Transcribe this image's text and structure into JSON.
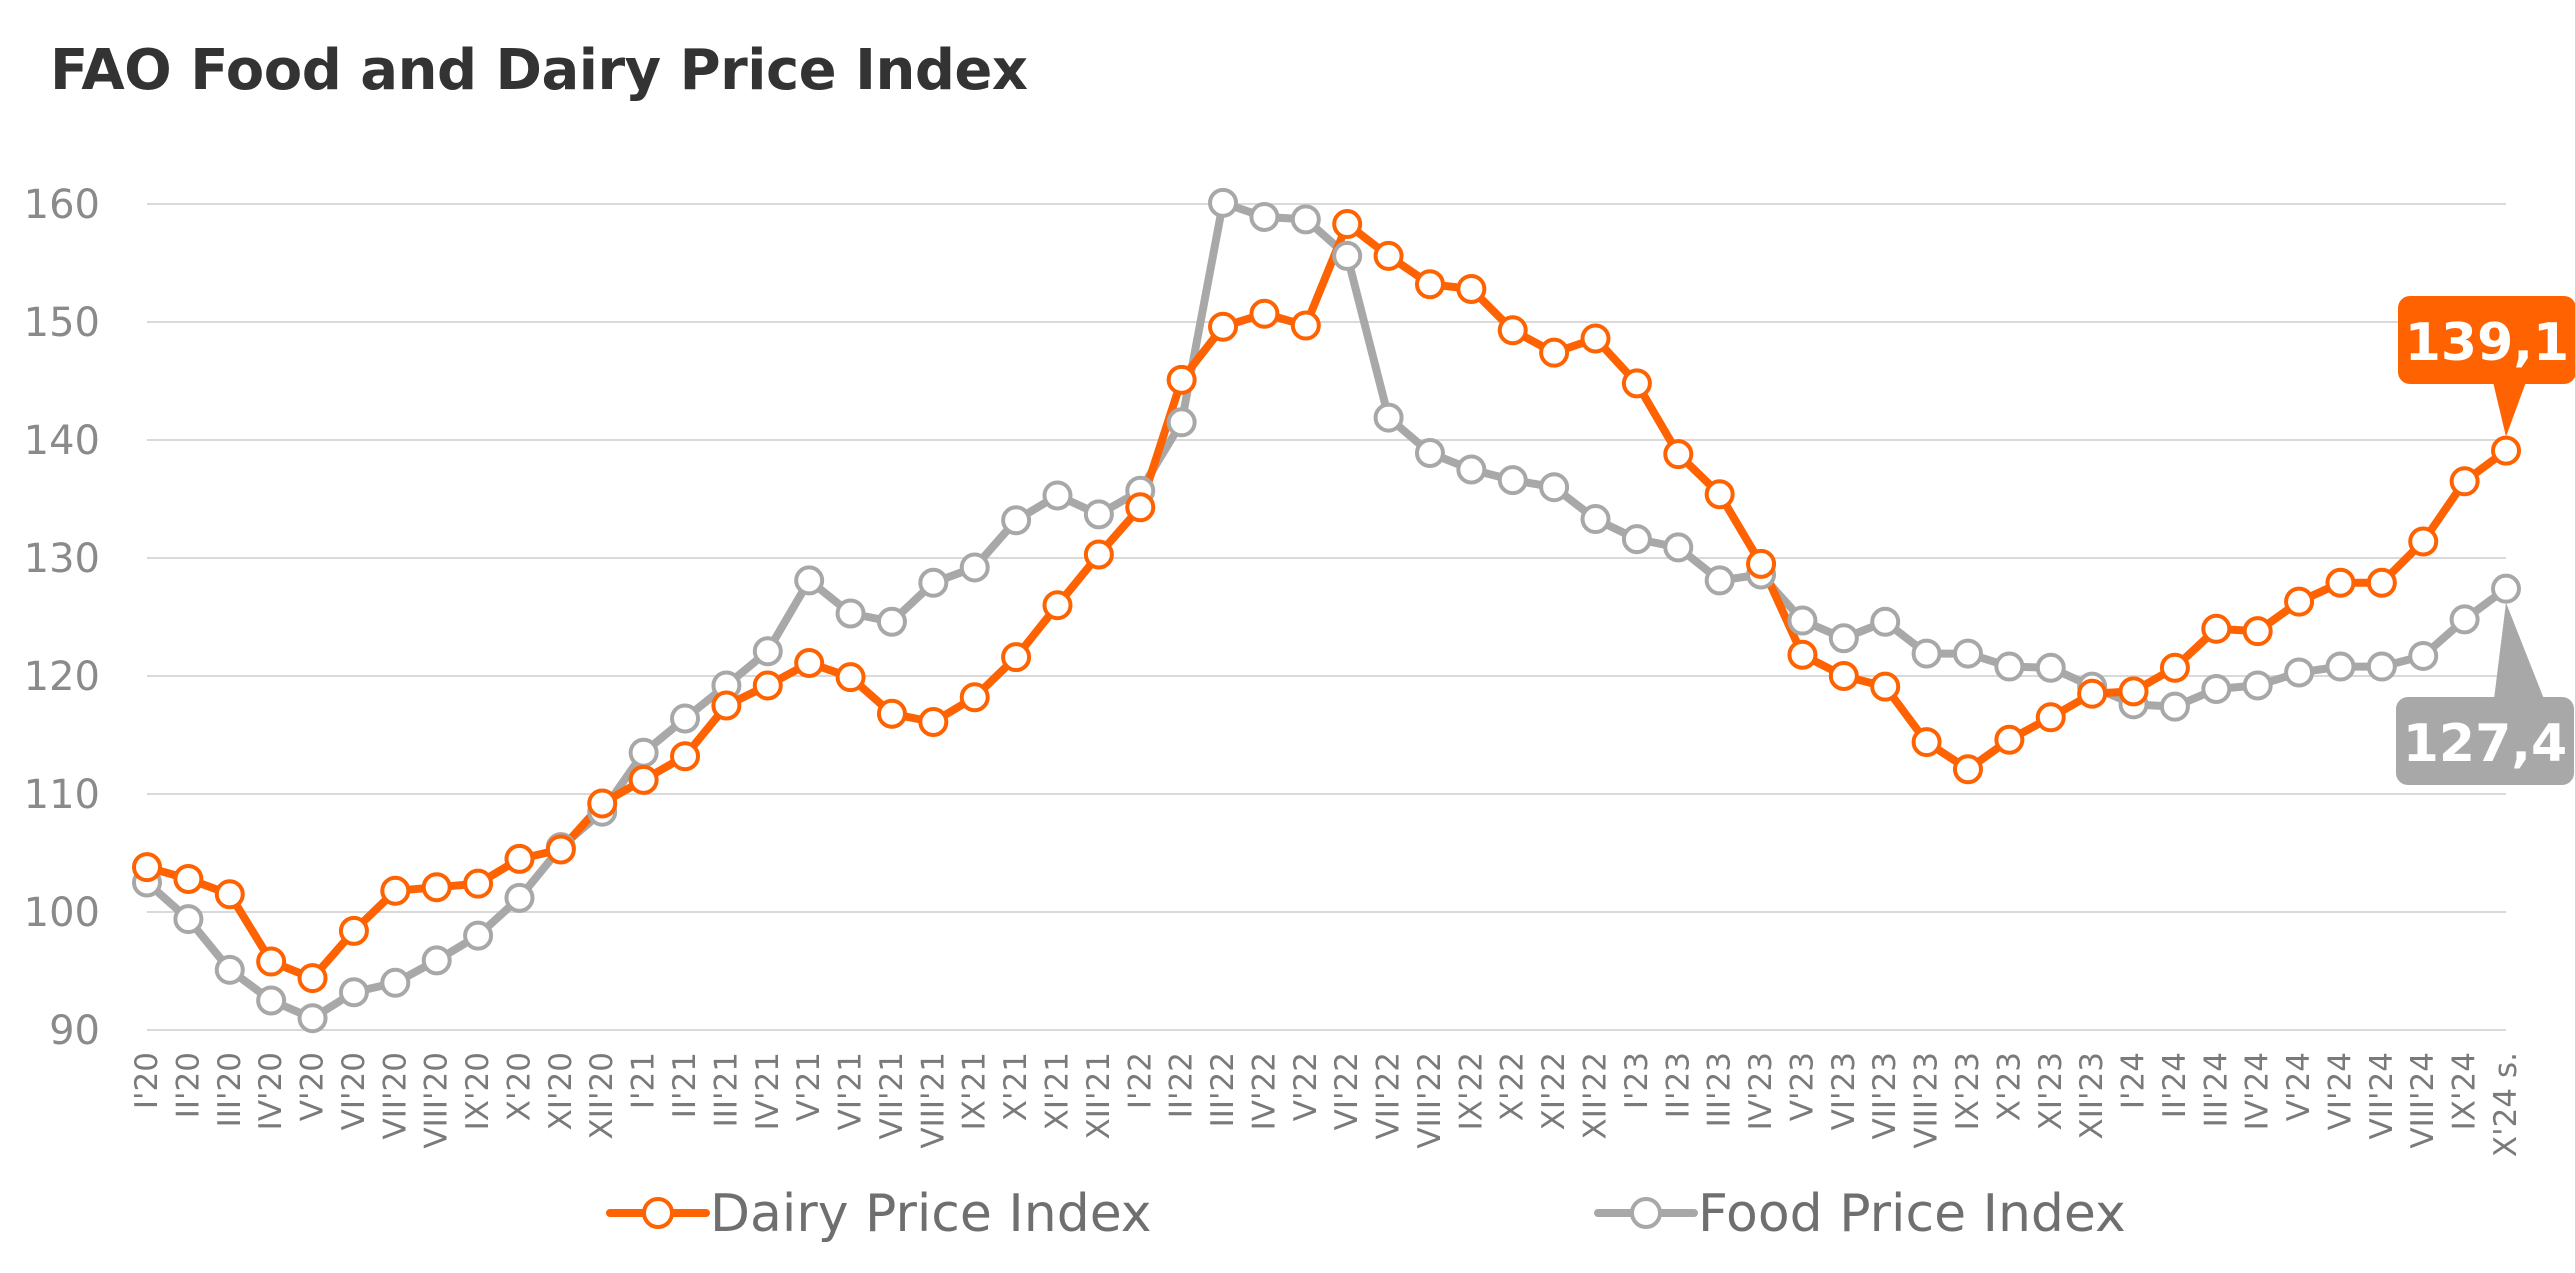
{
  "title": "FAO Food and Dairy Price Index",
  "chart_data": {
    "type": "line",
    "title": "FAO Food and Dairy Price Index",
    "xlabel": "",
    "ylabel": "",
    "ylim": [
      90,
      160
    ],
    "yticks": [
      90,
      100,
      110,
      120,
      130,
      140,
      150,
      160
    ],
    "grid": true,
    "legend_position": "bottom",
    "categories": [
      "I'20",
      "II'20",
      "III'20",
      "IV'20",
      "V'20",
      "VI'20",
      "VII'20",
      "VIII'20",
      "IX'20",
      "X'20",
      "XI'20",
      "XII'20",
      "I'21",
      "II'21",
      "III'21",
      "IV'21",
      "V'21",
      "VI'21",
      "VII'21",
      "VIII'21",
      "IX'21",
      "X'21",
      "XI'21",
      "XII'21",
      "I'22",
      "II'22",
      "III'22",
      "IV'22",
      "V'22",
      "VI'22",
      "VII'22",
      "VIII'22",
      "IX'22",
      "X'22",
      "XI'22",
      "XII'22",
      "I'23",
      "II'23",
      "III'23",
      "IV'23",
      "V'23",
      "VI'23",
      "VII'23",
      "VIII'23",
      "IX'23",
      "X'23",
      "XI'23",
      "XII'23",
      "I'24",
      "II'24",
      "III'24",
      "IV'24",
      "V'24",
      "VI'24",
      "VII'24",
      "VIII'24",
      "IX'24",
      "X'24 s."
    ],
    "series": [
      {
        "name": "Dairy Price Index",
        "color": "#ff6200",
        "values": [
          103.8,
          102.8,
          101.5,
          95.8,
          94.4,
          98.4,
          101.8,
          102.1,
          102.4,
          104.5,
          105.3,
          109.2,
          111.2,
          113.2,
          117.5,
          119.2,
          121.1,
          119.9,
          116.8,
          116.1,
          118.2,
          121.6,
          126.0,
          130.3,
          134.3,
          145.1,
          149.6,
          150.7,
          149.7,
          158.3,
          155.6,
          153.2,
          152.8,
          149.3,
          147.4,
          148.6,
          144.8,
          138.8,
          135.4,
          129.5,
          121.8,
          120.0,
          119.1,
          114.4,
          112.1,
          114.6,
          116.5,
          118.5,
          118.7,
          120.7,
          124.0,
          123.8,
          126.3,
          127.9,
          127.9,
          131.4,
          136.5,
          139.1
        ],
        "end_label": "139,1"
      },
      {
        "name": "Food Price Index",
        "color": "#a8a8a8",
        "values": [
          102.5,
          99.4,
          95.1,
          92.5,
          91.0,
          93.2,
          94.0,
          95.9,
          98.0,
          101.2,
          105.5,
          108.5,
          113.5,
          116.4,
          119.2,
          122.1,
          128.1,
          125.3,
          124.6,
          127.9,
          129.2,
          133.2,
          135.3,
          133.7,
          135.7,
          141.5,
          160.1,
          158.9,
          158.7,
          155.6,
          141.9,
          138.9,
          137.5,
          136.6,
          136.0,
          133.3,
          131.6,
          130.9,
          128.1,
          128.6,
          124.7,
          123.2,
          124.6,
          121.9,
          121.9,
          120.8,
          120.7,
          119.1,
          117.6,
          117.4,
          118.9,
          119.2,
          120.3,
          120.8,
          120.8,
          121.7,
          124.8,
          127.4
        ],
        "end_label": "127,4"
      }
    ]
  }
}
